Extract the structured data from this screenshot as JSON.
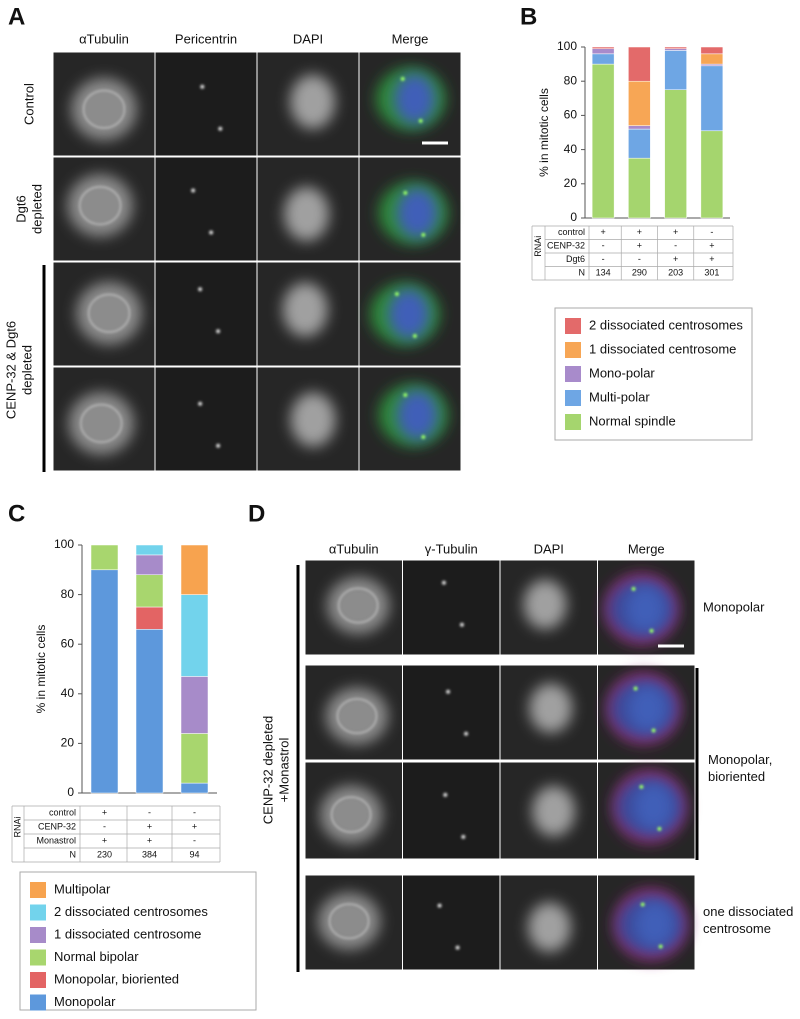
{
  "panel_letters": [
    "A",
    "B",
    "C",
    "D"
  ],
  "panel_a": {
    "columns": [
      {
        "label": "αTubulin",
        "color": "#3c9a2c"
      },
      {
        "label": "Pericentrin",
        "color": "#e0342c"
      },
      {
        "label": "DAPI",
        "color": "#3a68d8"
      },
      {
        "label": "Merge",
        "color": "#111111"
      }
    ],
    "rows": [
      [
        "Control"
      ],
      [
        "Dgt6",
        "depleted"
      ]
    ],
    "group_label": [
      "CENP-32 & Dgt6",
      "depleted"
    ]
  },
  "panel_d": {
    "columns": [
      {
        "label": "αTubulin",
        "color": "#3c9a2c"
      },
      {
        "label": "γ-Tubulin",
        "color": "#e0342c"
      },
      {
        "label": "DAPI",
        "color": "#3a68d8"
      },
      {
        "label": "Merge",
        "color": "#111111"
      }
    ],
    "side_label": [
      "CENP-32 depleted",
      "+Monastrol"
    ],
    "row_labels": [
      [
        "Monopolar"
      ],
      [
        "Monopolar,",
        "bioriented"
      ],
      [
        "one dissociated",
        "centrosome"
      ]
    ]
  },
  "chart_data": [
    {
      "type": "bar",
      "stacked": true,
      "ylabel": "% in mitotic cells",
      "ylim": [
        0,
        100
      ],
      "yticks": [
        0,
        20,
        40,
        60,
        80,
        100
      ],
      "series": [
        {
          "name": "Normal spindle",
          "color": "#a5d56e",
          "values": [
            90,
            35,
            75,
            51
          ]
        },
        {
          "name": "Multi-polar",
          "color": "#6ea6e4",
          "values": [
            6,
            17,
            23,
            38
          ]
        },
        {
          "name": "Mono-polar",
          "color": "#a88bcb",
          "values": [
            3,
            2,
            1,
            1
          ]
        },
        {
          "name": "1 dissociated centrosome",
          "color": "#f7a655",
          "values": [
            0,
            26,
            0,
            6
          ]
        },
        {
          "name": "2 dissociated centrosomes",
          "color": "#e36a6a",
          "values": [
            1,
            20,
            1,
            4
          ]
        }
      ],
      "table": {
        "group_label": "RNAi",
        "rows": [
          {
            "label": "control",
            "cells": [
              "+",
              "+",
              "+",
              "-"
            ]
          },
          {
            "label": "CENP-32",
            "cells": [
              "-",
              "+",
              "-",
              "+"
            ]
          },
          {
            "label": "Dgt6",
            "cells": [
              "-",
              "-",
              "+",
              "+"
            ]
          }
        ],
        "n_row": {
          "label": "N",
          "cells": [
            134,
            290,
            203,
            301
          ]
        }
      }
    },
    {
      "type": "bar",
      "stacked": true,
      "ylabel": "% in mitotic cells",
      "ylim": [
        0,
        100
      ],
      "yticks": [
        0,
        20,
        40,
        60,
        80,
        100
      ],
      "series": [
        {
          "name": "Monopolar",
          "color": "#5d98dc",
          "values": [
            90,
            66,
            4
          ]
        },
        {
          "name": "Monopolar, bioriented",
          "color": "#e36464",
          "values": [
            0,
            9,
            0
          ]
        },
        {
          "name": "Normal bipolar",
          "color": "#a8d66e",
          "values": [
            10,
            13,
            20
          ]
        },
        {
          "name": "1 dissociated centrosome",
          "color": "#a78bc9",
          "values": [
            0,
            8,
            23
          ]
        },
        {
          "name": "2 dissociated centrosomes",
          "color": "#72d3ec",
          "values": [
            0,
            4,
            33
          ]
        },
        {
          "name": "Multipolar",
          "color": "#f7a34f",
          "values": [
            0,
            0,
            20
          ]
        }
      ],
      "table": {
        "group_label": "RNAi",
        "rows": [
          {
            "label": "control",
            "cells": [
              "+",
              "-",
              "-"
            ]
          },
          {
            "label": "CENP-32",
            "cells": [
              "-",
              "+",
              "+"
            ]
          },
          {
            "label": "Monastrol",
            "cells": [
              "+",
              "+",
              "-"
            ]
          }
        ],
        "n_row": {
          "label": "N",
          "cells": [
            230,
            384,
            94
          ]
        }
      }
    }
  ]
}
